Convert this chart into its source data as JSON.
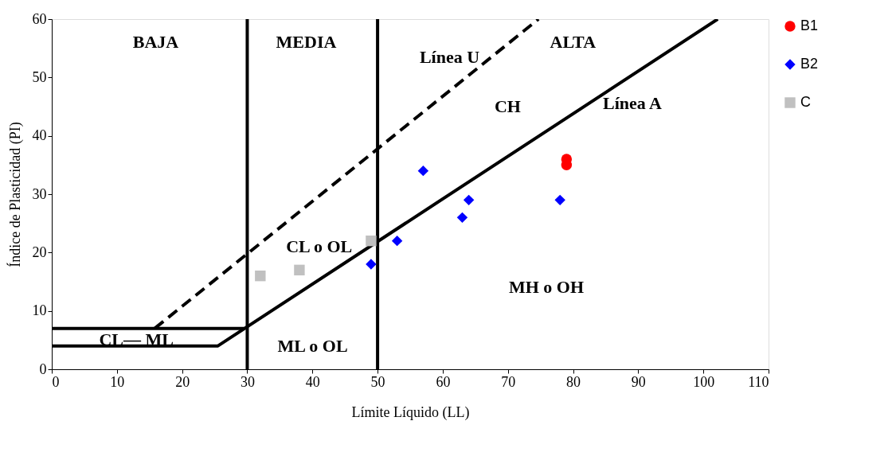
{
  "chart_data": {
    "type": "scatter",
    "xlabel": "Límite Líquido (LL)",
    "ylabel": "Índice de Plasticidad (PI)",
    "xlim": [
      0,
      110
    ],
    "xticks": [
      0,
      10,
      20,
      30,
      40,
      50,
      60,
      70,
      80,
      90,
      100,
      110
    ],
    "ylim": [
      0,
      60
    ],
    "yticks": [
      0,
      10,
      20,
      30,
      40,
      50,
      60
    ],
    "grid": false,
    "legend": "right",
    "series": [
      {
        "name": "B1",
        "marker": "circle",
        "color": "#ff0000",
        "x": [
          79,
          79
        ],
        "values": [
          35,
          36
        ]
      },
      {
        "name": "B2",
        "marker": "diamond",
        "color": "#0000ff",
        "x": [
          49,
          53,
          57,
          63,
          64,
          78
        ],
        "values": [
          18,
          22,
          34,
          26,
          29,
          29
        ]
      },
      {
        "name": "C",
        "marker": "square",
        "color": "#c0c0c0",
        "x": [
          32,
          38,
          49
        ],
        "values": [
          16,
          17,
          22
        ]
      },
      {
        "type": "line",
        "color": "#000000",
        "line_style": "solid",
        "x": [
          0,
          25.5,
          102.2
        ],
        "values": [
          4,
          4,
          60
        ]
      },
      {
        "type": "line",
        "color": "#000000",
        "line_style": "dashed",
        "x": [
          15.8,
          74.7
        ],
        "values": [
          7,
          60
        ]
      },
      {
        "type": "line",
        "color": "#000000",
        "line_style": "solid",
        "x": [
          0,
          29.6
        ],
        "values": [
          7,
          7
        ]
      }
    ],
    "ref_lines": [
      {
        "axis": "x",
        "value": 30,
        "color": "#000000"
      },
      {
        "axis": "x",
        "value": 50,
        "color": "#000000"
      }
    ],
    "annotations": [
      "BAJA",
      "MEDIA",
      "ALTA",
      "Línea U",
      "CH",
      "Línea A",
      "CL  o  OL",
      "MH  o OH",
      "ML  o  OL",
      "CL— ML"
    ]
  }
}
